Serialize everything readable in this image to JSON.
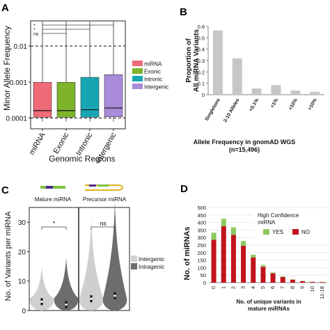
{
  "panel_labels": [
    "A",
    "B",
    "C",
    "D"
  ],
  "chart_data": [
    {
      "panel": "A",
      "type": "box",
      "ylabel": "Minor Allele Frequency",
      "xlabel": "Genomic Regions",
      "y_scale": "log",
      "ylim": [
        5e-05,
        0.05
      ],
      "yticks": [
        0.0001,
        0.001,
        0.01
      ],
      "ytick_labels": [
        "0.0001",
        "0.001",
        "0.01"
      ],
      "reference_lines": [
        0.01,
        0.0001
      ],
      "categories": [
        "miRNA",
        "Exonic",
        "Intronic",
        "Intergenic"
      ],
      "boxes": [
        {
          "name": "miRNA",
          "color": "#f06a78",
          "whisker_low": 8e-05,
          "q1": 0.000105,
          "median": 0.00016,
          "q3": 0.00098,
          "whisker_high": 0.05
        },
        {
          "name": "Exonic",
          "color": "#7db42a",
          "whisker_low": 8e-05,
          "q1": 0.000105,
          "median": 0.00016,
          "q3": 0.00098,
          "whisker_high": 0.05
        },
        {
          "name": "Intronic",
          "color": "#17a6b1",
          "whisker_low": 8e-05,
          "q1": 0.000105,
          "median": 0.00017,
          "q3": 0.00135,
          "whisker_high": 0.05
        },
        {
          "name": "Intergenic",
          "color": "#a98bd9",
          "whisker_low": 8e-05,
          "q1": 0.000108,
          "median": 0.00019,
          "q3": 0.0016,
          "whisker_high": 0.05
        }
      ],
      "legend": [
        "miRNA",
        "Exonic",
        "Intronic",
        "Intergenic"
      ],
      "significance": [
        "*",
        "*",
        "ns"
      ]
    },
    {
      "panel": "B",
      "type": "bar",
      "ylabel": "Proportion of All miRNA Variants",
      "xlabel": "Allele Frequency in gnomAD WGS",
      "subtitle": "(n=15,496)",
      "ylim": [
        0,
        0.6
      ],
      "yticks": [
        0,
        0.1,
        0.2,
        0.3,
        0.4,
        0.5,
        0.6
      ],
      "categories": [
        "Singletons",
        "2-10 Alleles",
        "<0.1%",
        "<1%",
        "<10%",
        ">10%"
      ],
      "values": [
        0.565,
        0.32,
        0.055,
        0.085,
        0.037,
        0.025
      ],
      "color": "#c7c7c7"
    },
    {
      "panel": "C",
      "type": "violin",
      "ylabel": "No. of Variants per miRNA",
      "ylim": [
        0,
        35
      ],
      "yticks": [
        0,
        10,
        20,
        30
      ],
      "groups": [
        "Mature miRNA",
        "Precursor miRNA"
      ],
      "series": [
        {
          "name": "Intergenic",
          "color": "#cfcfcf"
        },
        {
          "name": "Intragenic",
          "color": "#6d6d6d"
        }
      ],
      "violins": [
        {
          "group": "Mature miRNA",
          "series": "Intergenic",
          "max": 15,
          "median": 3
        },
        {
          "group": "Mature miRNA",
          "series": "Intragenic",
          "max": 18,
          "median": 2
        },
        {
          "group": "Precursor miRNA",
          "series": "Intergenic",
          "max": 31,
          "median": 4
        },
        {
          "group": "Precursor miRNA",
          "series": "Intragenic",
          "max": 37,
          "median": 5
        }
      ],
      "significance": [
        "*",
        "ns"
      ],
      "legend": [
        "Intergenic",
        "Intragenic"
      ]
    },
    {
      "panel": "D",
      "type": "stacked_bar",
      "ylabel": "No. of miRNAs",
      "xlabel": "No. of unique variants in mature miRNAs",
      "ylim": [
        0,
        500
      ],
      "yticks": [
        0,
        50,
        100,
        150,
        200,
        250,
        300,
        350,
        400,
        450,
        500
      ],
      "categories": [
        "0",
        "1",
        "2",
        "3",
        "4",
        "5",
        "6",
        "7",
        "8",
        "9",
        "10",
        "11-18"
      ],
      "legend_title": "High Confidence miRNA",
      "series": [
        {
          "name": "NO",
          "color": "#c1141c",
          "values": [
            285,
            375,
            318,
            245,
            168,
            105,
            62,
            38,
            20,
            10,
            5,
            4
          ]
        },
        {
          "name": "YES",
          "color": "#8bc95c",
          "values": [
            47,
            50,
            50,
            32,
            18,
            12,
            6,
            4,
            2,
            2,
            1,
            1
          ]
        }
      ]
    }
  ]
}
